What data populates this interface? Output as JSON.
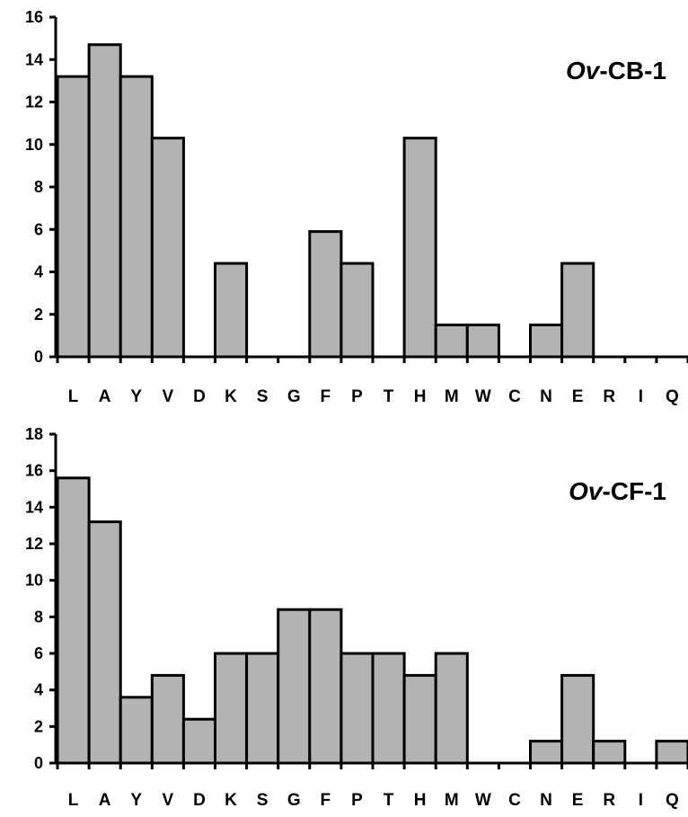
{
  "chart_data": [
    {
      "type": "bar",
      "title_italic": "Ov",
      "title_rest": "-CB-1",
      "categories": [
        "L",
        "A",
        "Y",
        "V",
        "D",
        "K",
        "S",
        "G",
        "F",
        "P",
        "T",
        "H",
        "M",
        "W",
        "C",
        "N",
        "E",
        "R",
        "I",
        "Q"
      ],
      "values": [
        13.2,
        14.7,
        13.2,
        10.3,
        0,
        4.4,
        0,
        0,
        5.9,
        4.4,
        0,
        10.3,
        1.5,
        1.5,
        0,
        1.5,
        4.4,
        0,
        0,
        0
      ],
      "ylim": [
        0,
        16
      ],
      "yticks": [
        "0",
        "2",
        "4",
        "6",
        "8",
        "10",
        "12",
        "14",
        "16"
      ],
      "grid": false,
      "bar_color": "#b3b3b3"
    },
    {
      "type": "bar",
      "title_italic": "Ov",
      "title_rest": "-CF-1",
      "categories": [
        "L",
        "A",
        "Y",
        "V",
        "D",
        "K",
        "S",
        "G",
        "F",
        "P",
        "T",
        "H",
        "M",
        "W",
        "C",
        "N",
        "E",
        "R",
        "I",
        "Q"
      ],
      "values": [
        15.6,
        13.2,
        3.6,
        4.8,
        2.4,
        6.0,
        6.0,
        8.4,
        8.4,
        6.0,
        6.0,
        4.8,
        6.0,
        0,
        0,
        1.2,
        4.8,
        1.2,
        0,
        1.2
      ],
      "ylim": [
        0,
        18
      ],
      "yticks": [
        "0",
        "2",
        "4",
        "6",
        "8",
        "10",
        "12",
        "14",
        "16",
        "18"
      ],
      "grid": false,
      "bar_color": "#b3b3b3"
    }
  ]
}
